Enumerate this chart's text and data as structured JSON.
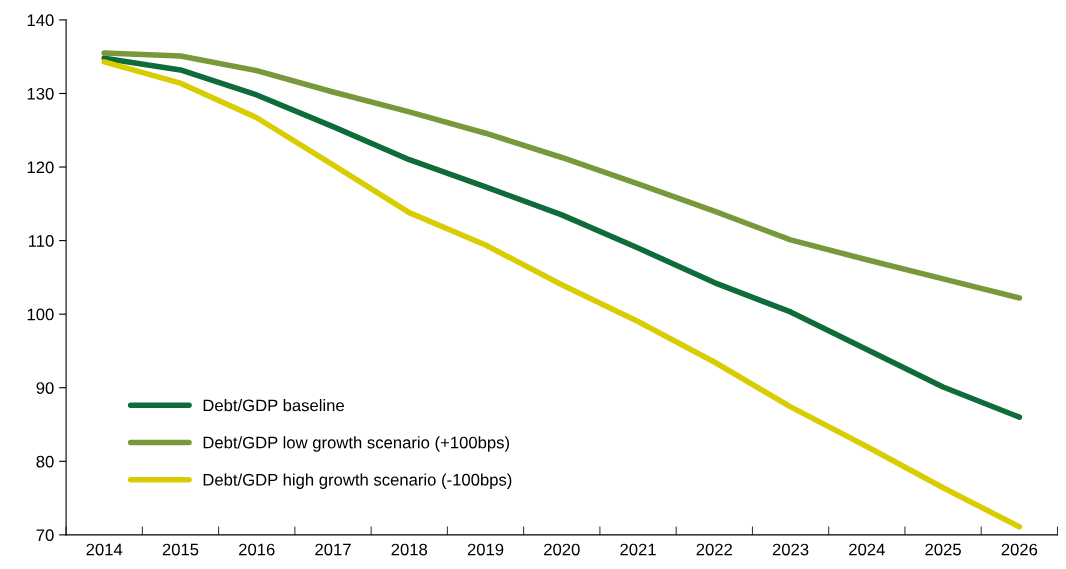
{
  "chart_data": {
    "type": "line",
    "categories": [
      "2014",
      "2015",
      "2016",
      "2017",
      "2018",
      "2019",
      "2020",
      "2021",
      "2022",
      "2023",
      "2024",
      "2025",
      "2026"
    ],
    "series": [
      {
        "name": "Debt/GDP baseline",
        "color": "#0e6b3a",
        "values": [
          134.8,
          133.2,
          129.8,
          125.5,
          121,
          117.3,
          113.5,
          109,
          104.3,
          100.3,
          95.2,
          90.1,
          86
        ]
      },
      {
        "name": "Debt/GDP low growth scenario (+100bps)",
        "color": "#77993c",
        "values": [
          135.5,
          135.1,
          133.1,
          130.2,
          127.5,
          124.6,
          121.3,
          117.7,
          114,
          110.1,
          107.4,
          104.8,
          102.2
        ]
      },
      {
        "name": "Debt/GDP high growth scenario (-100bps)",
        "color": "#d9cc00",
        "values": [
          134.3,
          131.4,
          126.7,
          120.3,
          113.8,
          109.4,
          104,
          99,
          93.5,
          87.4,
          82,
          76.4,
          71.1
        ]
      }
    ],
    "ylim": [
      70,
      140
    ],
    "yticks": [
      70,
      80,
      90,
      100,
      110,
      120,
      130,
      140
    ],
    "grid": false,
    "legend": "bottom left",
    "marker": "none",
    "line_style": "solid"
  }
}
